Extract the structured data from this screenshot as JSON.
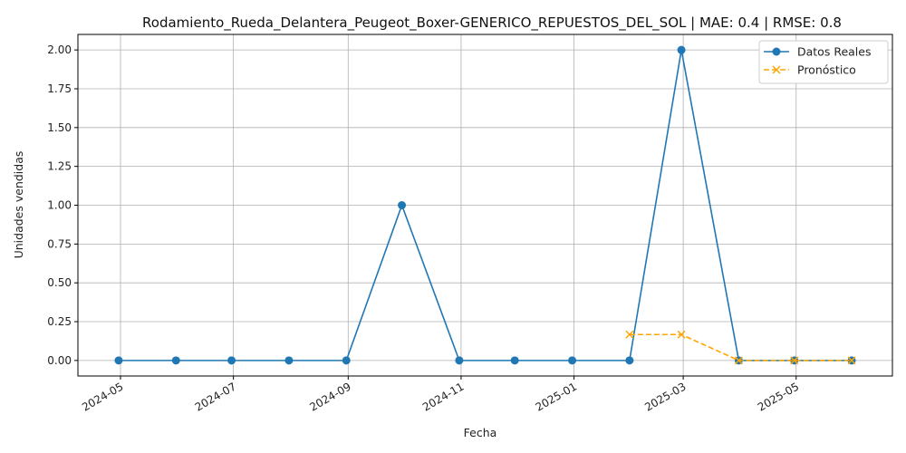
{
  "chart_data": {
    "type": "line",
    "title": "Rodamiento_Rueda_Delantera_Peugeot_Boxer-GENERICO_REPUESTOS_DEL_SOL | MAE: 0.4 | RMSE: 0.8",
    "xlabel": "Fecha",
    "ylabel": "Unidades vendidas",
    "xlim": [
      "2024-04-08",
      "2025-06-22"
    ],
    "ylim": [
      -0.1,
      2.1
    ],
    "x_ticks": [
      "2024-05-01",
      "2024-07-01",
      "2024-09-01",
      "2024-11-01",
      "2025-01-01",
      "2025-03-01",
      "2025-05-01"
    ],
    "x_tick_labels": [
      "2024-05",
      "2024-07",
      "2024-09",
      "2024-11",
      "2025-01",
      "2025-03",
      "2025-05"
    ],
    "y_ticks": [
      0.0,
      0.25,
      0.5,
      0.75,
      1.0,
      1.25,
      1.5,
      1.75,
      2.0
    ],
    "y_tick_labels": [
      "0.00",
      "0.25",
      "0.50",
      "0.75",
      "1.00",
      "1.25",
      "1.50",
      "1.75",
      "2.00"
    ],
    "grid": true,
    "legend_position": "top-right",
    "series": [
      {
        "name": "Datos Reales",
        "color": "#1f77b4",
        "marker": "circle",
        "linestyle": "solid",
        "x": [
          "2024-04-30",
          "2024-05-31",
          "2024-06-30",
          "2024-07-31",
          "2024-08-31",
          "2024-09-30",
          "2024-10-31",
          "2024-11-30",
          "2024-12-31",
          "2025-01-31",
          "2025-02-28",
          "2025-03-31",
          "2025-04-30",
          "2025-05-31"
        ],
        "values": [
          0,
          0,
          0,
          0,
          0,
          1,
          0,
          0,
          0,
          0,
          2,
          0,
          0,
          0
        ]
      },
      {
        "name": "Pronóstico",
        "color": "#ffa500",
        "marker": "x",
        "linestyle": "dashed",
        "x": [
          "2025-01-31",
          "2025-02-28",
          "2025-03-31",
          "2025-04-30",
          "2025-05-31"
        ],
        "values": [
          0.167,
          0.167,
          0,
          0,
          0
        ]
      }
    ]
  }
}
